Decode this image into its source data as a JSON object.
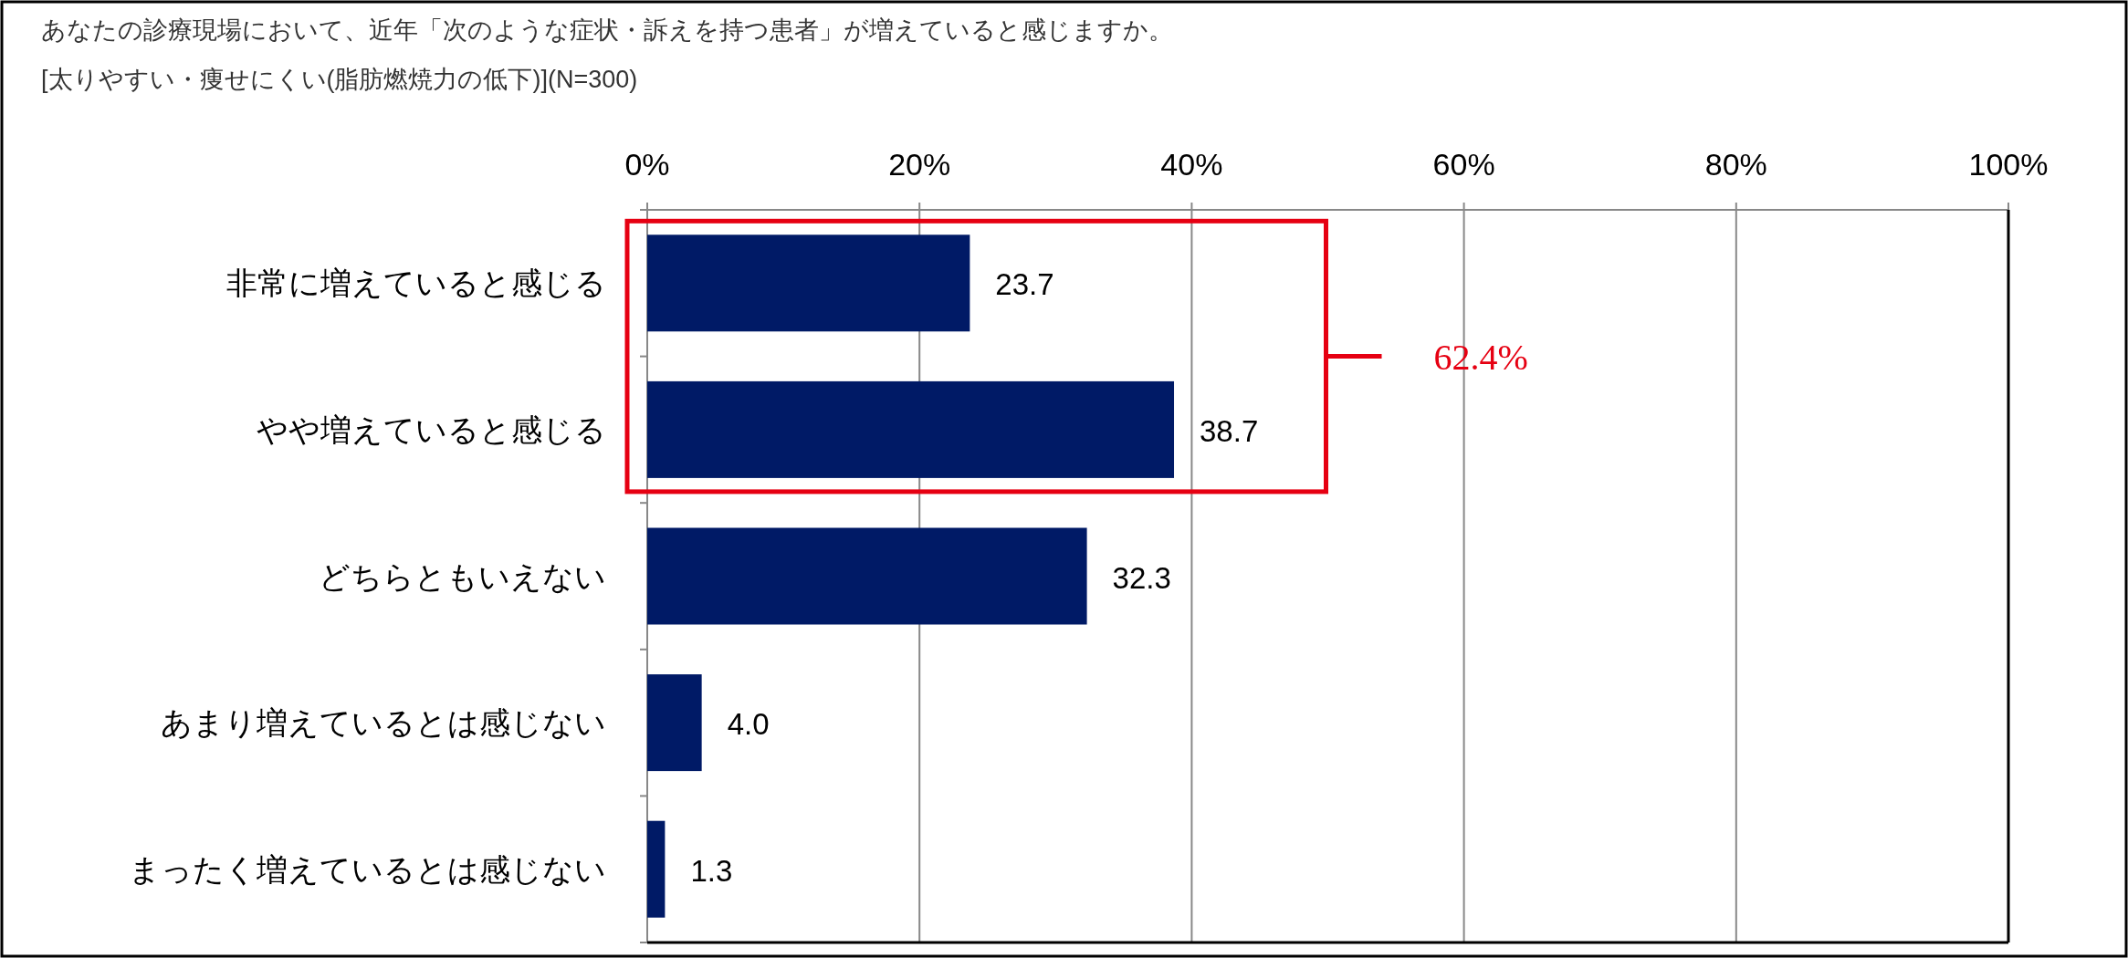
{
  "chart_data": {
    "type": "bar",
    "orientation": "horizontal",
    "title": "あなたの診療現場において、近年「次のような症状・訴えを持つ患者」が増えていると感じますか。",
    "subtitle": "[太りやすい・痩せにくい(脂肪燃焼力の低下)](N=300)",
    "categories": [
      "非常に増えていると感じる",
      "やや増えていると感じる",
      "どちらともいえない",
      "あまり増えているとは感じない",
      "まったく増えているとは感じない"
    ],
    "values": [
      23.7,
      38.7,
      32.3,
      4.0,
      1.3
    ],
    "value_labels": [
      "23.7",
      "38.7",
      "32.3",
      "4.0",
      "1.3"
    ],
    "color": "#001a66",
    "xlim": [
      0,
      100
    ],
    "xticks": [
      {
        "value": 0,
        "label": "0%"
      },
      {
        "value": 20,
        "label": "20%"
      },
      {
        "value": 40,
        "label": "40%"
      },
      {
        "value": 60,
        "label": "60%"
      },
      {
        "value": 80,
        "label": "80%"
      },
      {
        "value": 100,
        "label": "100%"
      }
    ],
    "grid": "x",
    "annotations": [
      "62.4%"
    ]
  }
}
